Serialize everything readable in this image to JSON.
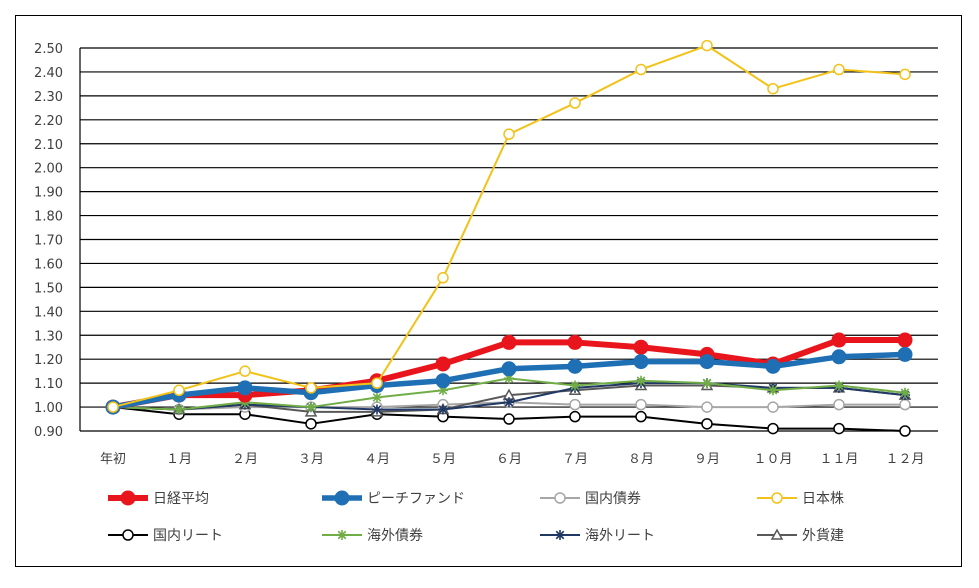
{
  "chart_data": {
    "type": "line",
    "title": "",
    "xlabel": "",
    "ylabel": "",
    "ylim": [
      0.9,
      2.5
    ],
    "y_ticks": [
      "0.90",
      "1.00",
      "1.10",
      "1.20",
      "1.30",
      "1.40",
      "1.50",
      "1.60",
      "1.70",
      "1.80",
      "1.90",
      "2.00",
      "2.10",
      "2.20",
      "2.30",
      "2.40",
      "2.50"
    ],
    "grid": true,
    "legend_position": "bottom",
    "categories": [
      "年初",
      "１月",
      "２月",
      "３月",
      "４月",
      "５月",
      "６月",
      "７月",
      "８月",
      "９月",
      "１０月",
      "１１月",
      "１２月"
    ],
    "series": [
      {
        "name": "日経平均",
        "color": "#e8161c",
        "marker": "circle-filled",
        "values": [
          1.0,
          1.05,
          1.05,
          1.07,
          1.11,
          1.18,
          1.27,
          1.27,
          1.25,
          1.22,
          1.18,
          1.28,
          1.28
        ]
      },
      {
        "name": "ピーチファンド",
        "color": "#1f6fb4",
        "marker": "circle-filled",
        "values": [
          1.0,
          1.05,
          1.08,
          1.06,
          1.09,
          1.11,
          1.16,
          1.17,
          1.19,
          1.19,
          1.17,
          1.21,
          1.22
        ]
      },
      {
        "name": "国内債券",
        "color": "#a6a6a6",
        "marker": "circle-open",
        "values": [
          1.0,
          0.99,
          1.0,
          1.0,
          1.0,
          1.01,
          1.02,
          1.01,
          1.01,
          1.0,
          1.0,
          1.01,
          1.01
        ]
      },
      {
        "name": "日本株",
        "color": "#f2c219",
        "marker": "circle-open",
        "values": [
          1.0,
          1.07,
          1.15,
          1.08,
          1.1,
          1.54,
          2.14,
          2.27,
          2.41,
          2.51,
          2.33,
          2.41,
          2.39
        ]
      },
      {
        "name": "国内リート",
        "color": "#000000",
        "marker": "circle-open",
        "values": [
          1.0,
          0.97,
          0.97,
          0.93,
          0.97,
          0.96,
          0.95,
          0.96,
          0.96,
          0.93,
          0.91,
          0.91,
          0.9
        ]
      },
      {
        "name": "海外債券",
        "color": "#70ad47",
        "marker": "star",
        "values": [
          1.0,
          0.99,
          1.02,
          1.0,
          1.04,
          1.07,
          1.12,
          1.09,
          1.11,
          1.1,
          1.07,
          1.09,
          1.06
        ]
      },
      {
        "name": "海外リート",
        "color": "#203864",
        "marker": "star",
        "values": [
          1.0,
          0.99,
          1.01,
          1.0,
          0.99,
          0.99,
          1.02,
          1.08,
          1.1,
          1.1,
          1.08,
          1.08,
          1.05
        ]
      },
      {
        "name": "外貨建",
        "color": "#595959",
        "marker": "triangle-open",
        "values": [
          1.0,
          0.99,
          1.01,
          0.98,
          0.98,
          0.99,
          1.05,
          1.07,
          1.09,
          1.09,
          1.08,
          1.08,
          1.05
        ]
      }
    ]
  }
}
